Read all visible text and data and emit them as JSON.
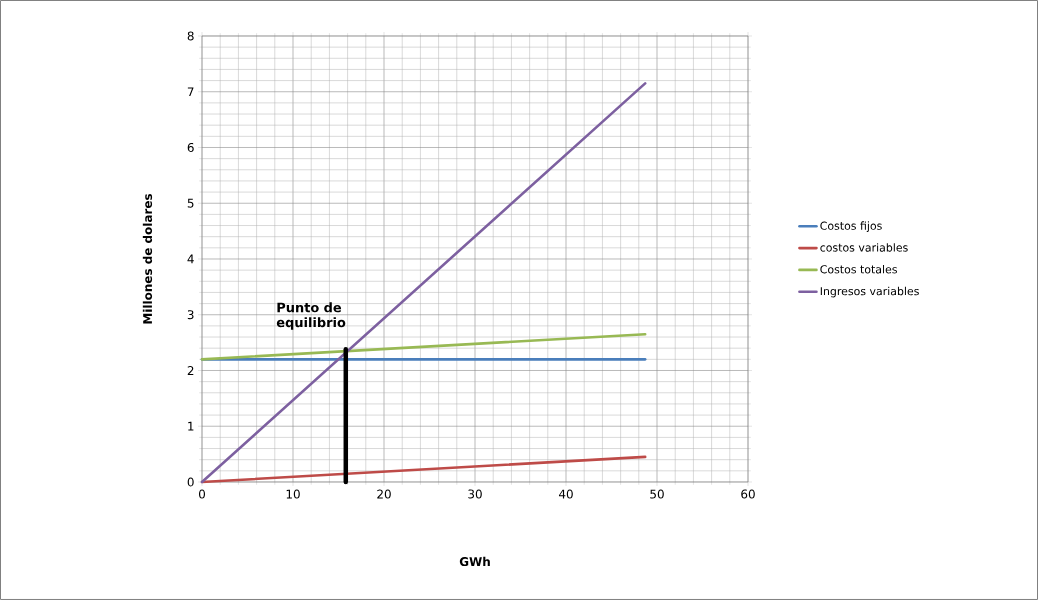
{
  "chart_data": {
    "type": "line",
    "xlabel": "GWh",
    "ylabel": "Millones de dolares",
    "xlim": [
      0,
      60
    ],
    "ylim": [
      0,
      8
    ],
    "xticks": [
      0,
      10,
      20,
      30,
      40,
      50,
      60
    ],
    "yticks": [
      0,
      1,
      2,
      3,
      4,
      5,
      6,
      7,
      8
    ],
    "grid": true,
    "legend": "right",
    "marker": "none",
    "line_style": "solid",
    "series": [
      {
        "name": "Costos fijos",
        "color": "#4a7ebb",
        "x": [
          0,
          48.7
        ],
        "values": [
          2.2,
          2.2
        ]
      },
      {
        "name": "costos variables",
        "color": "#be4b48",
        "x": [
          0,
          48.7
        ],
        "values": [
          0,
          0.45
        ]
      },
      {
        "name": "Costos totales",
        "color": "#98b954",
        "x": [
          0,
          48.7
        ],
        "values": [
          2.2,
          2.65
        ]
      },
      {
        "name": "Ingresos variables",
        "color": "#7d60a0",
        "x": [
          0,
          48.7
        ],
        "values": [
          0,
          7.15
        ]
      },
      {
        "color": "#000000",
        "x": [
          15.8,
          15.8
        ],
        "values": [
          0,
          2.38
        ]
      }
    ],
    "annotations": [
      {
        "text": "Punto de equilibrio",
        "x": 15.8,
        "y": 2.38
      }
    ]
  }
}
